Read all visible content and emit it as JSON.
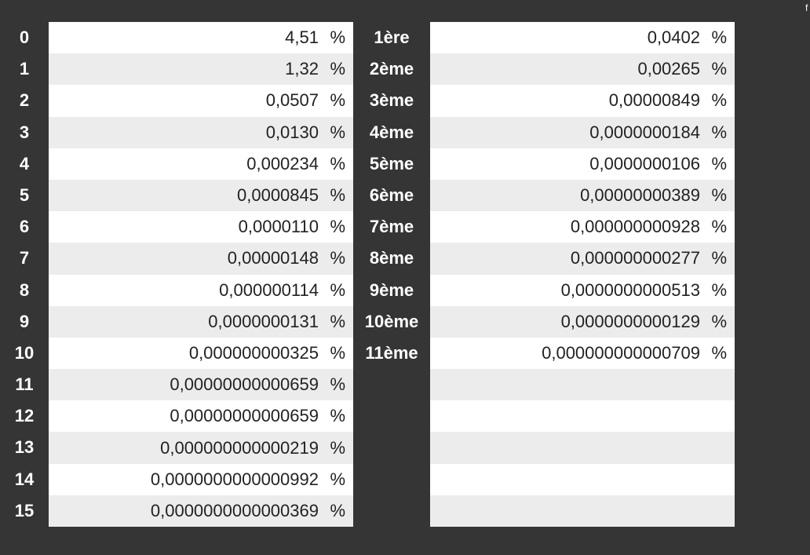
{
  "corner_text": "f",
  "left_table": {
    "labels": [
      "0",
      "1",
      "2",
      "3",
      "4",
      "5",
      "6",
      "7",
      "8",
      "9",
      "10",
      "11",
      "12",
      "13",
      "14",
      "15"
    ],
    "rows": [
      {
        "value": "4,51",
        "unit": "%"
      },
      {
        "value": "1,32",
        "unit": "%"
      },
      {
        "value": "0,0507",
        "unit": "%"
      },
      {
        "value": "0,0130",
        "unit": "%"
      },
      {
        "value": "0,000234",
        "unit": "%"
      },
      {
        "value": "0,0000845",
        "unit": "%"
      },
      {
        "value": "0,0000110",
        "unit": "%"
      },
      {
        "value": "0,00000148",
        "unit": "%"
      },
      {
        "value": "0,000000114",
        "unit": "%"
      },
      {
        "value": "0,0000000131",
        "unit": "%"
      },
      {
        "value": "0,000000000325",
        "unit": "%"
      },
      {
        "value": "0,00000000000659",
        "unit": "%"
      },
      {
        "value": "0,00000000000659",
        "unit": "%"
      },
      {
        "value": "0,000000000000219",
        "unit": "%"
      },
      {
        "value": "0,0000000000000992",
        "unit": "%"
      },
      {
        "value": "0,0000000000000369",
        "unit": "%"
      }
    ]
  },
  "right_table": {
    "labels": [
      "1ère",
      "2ème",
      "3ème",
      "4ème",
      "5ème",
      "6ème",
      "7ème",
      "8ème",
      "9ème",
      "10ème",
      "11ème"
    ],
    "rows": [
      {
        "value": "0,0402",
        "unit": "%"
      },
      {
        "value": "0,00265",
        "unit": "%"
      },
      {
        "value": "0,00000849",
        "unit": "%"
      },
      {
        "value": "0,0000000184",
        "unit": "%"
      },
      {
        "value": "0,0000000106",
        "unit": "%"
      },
      {
        "value": "0,00000000389",
        "unit": "%"
      },
      {
        "value": "0,000000000928",
        "unit": "%"
      },
      {
        "value": "0,000000000277",
        "unit": "%"
      },
      {
        "value": "0,0000000000513",
        "unit": "%"
      },
      {
        "value": "0,0000000000129",
        "unit": "%"
      },
      {
        "value": "0,000000000000709",
        "unit": "%"
      },
      {
        "value": "",
        "unit": ""
      },
      {
        "value": "",
        "unit": ""
      },
      {
        "value": "",
        "unit": ""
      },
      {
        "value": "",
        "unit": ""
      },
      {
        "value": "",
        "unit": ""
      }
    ]
  }
}
